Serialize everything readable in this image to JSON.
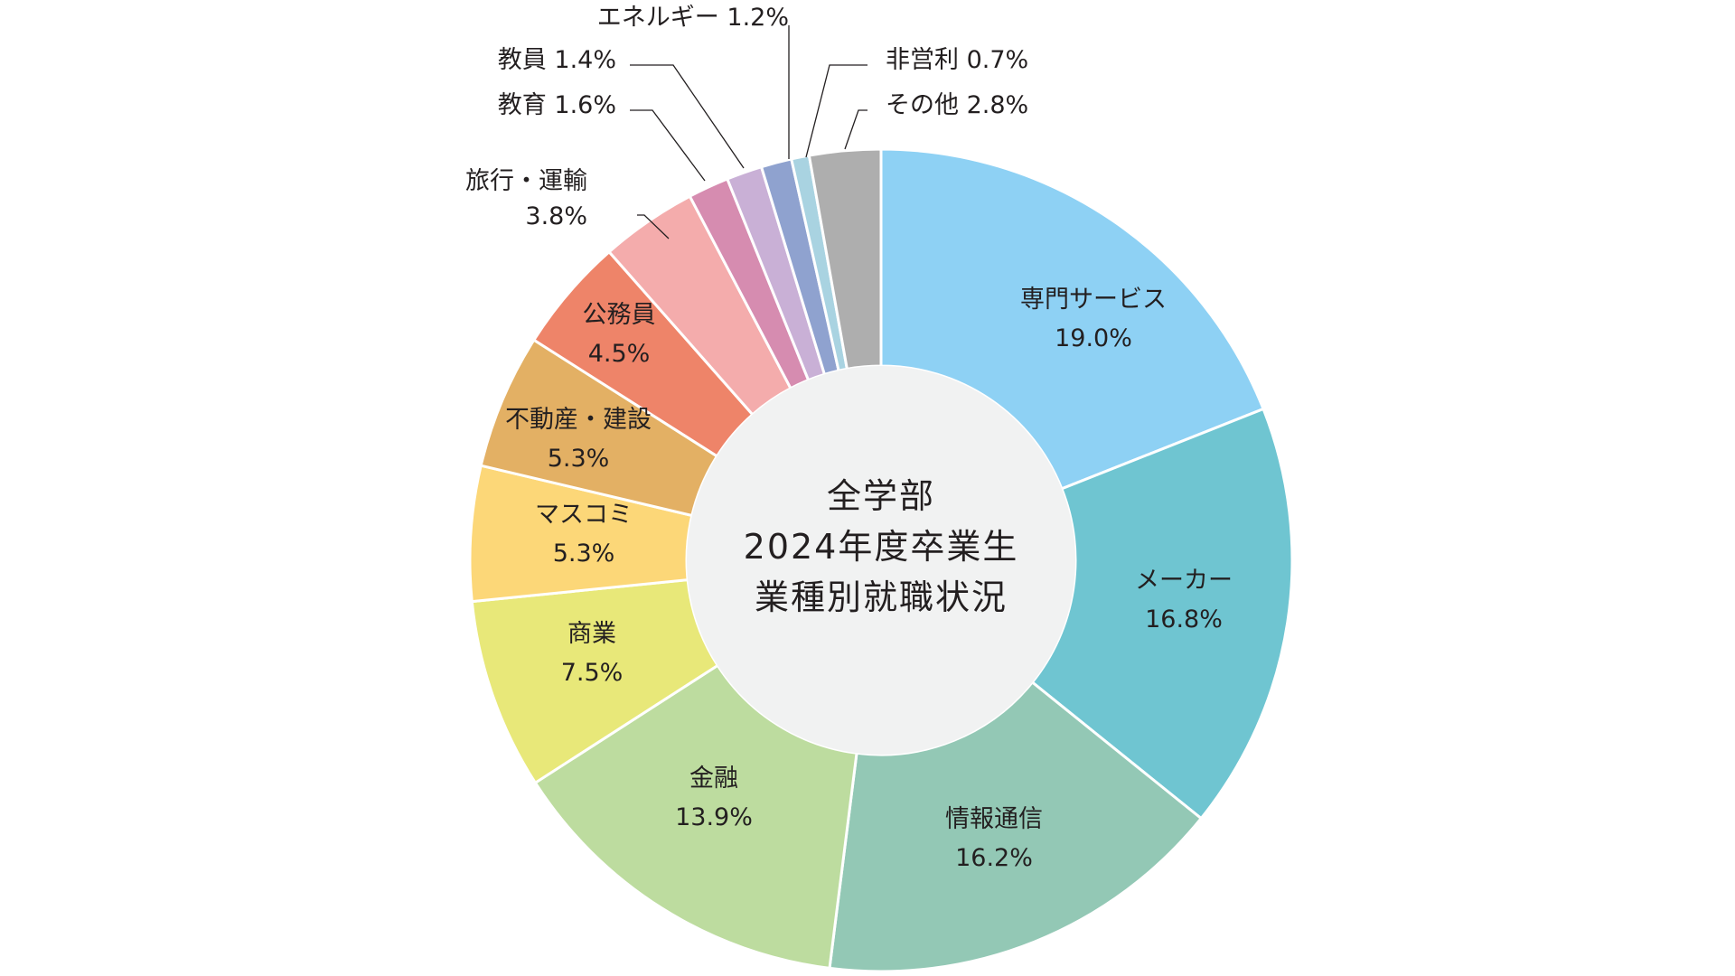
{
  "chart_data": {
    "type": "pie",
    "donut": true,
    "center_title": [
      "全学部",
      "2024年度卒業生",
      "業種別就職状況"
    ],
    "slices": [
      {
        "label": "専門サービス",
        "value": 19.0,
        "value_label": "19.0%",
        "color": "#8ed1f4"
      },
      {
        "label": "メーカー",
        "value": 16.8,
        "value_label": "16.8%",
        "color": "#6fc5d1"
      },
      {
        "label": "情報通信",
        "value": 16.2,
        "value_label": "16.2%",
        "color": "#93c8b5"
      },
      {
        "label": "金融",
        "value": 13.9,
        "value_label": "13.9%",
        "color": "#bddc9f"
      },
      {
        "label": "商業",
        "value": 7.5,
        "value_label": "7.5%",
        "color": "#e8e879"
      },
      {
        "label": "マスコミ",
        "value": 5.3,
        "value_label": "5.3%",
        "color": "#fcd778"
      },
      {
        "label": "不動産・建設",
        "value": 5.3,
        "value_label": "5.3%",
        "color": "#e3b064"
      },
      {
        "label": "公務員",
        "value": 4.5,
        "value_label": "4.5%",
        "color": "#ee8469"
      },
      {
        "label": "旅行・運輸",
        "value": 3.8,
        "value_label": "3.8%",
        "color": "#f4acac"
      },
      {
        "label": "教育",
        "value": 1.6,
        "value_label": "1.6%",
        "color": "#d68cb0"
      },
      {
        "label": "教員",
        "value": 1.4,
        "value_label": "1.4%",
        "color": "#c9b0d6"
      },
      {
        "label": "エネルギー",
        "value": 1.2,
        "value_label": "1.2%",
        "color": "#8fa2cf"
      },
      {
        "label": "非営利",
        "value": 0.7,
        "value_label": "0.7%",
        "color": "#a9d3e1"
      },
      {
        "label": "その他",
        "value": 2.8,
        "value_label": "2.8%",
        "color": "#aeaeae"
      }
    ],
    "center_fill": "#f1f2f2"
  }
}
